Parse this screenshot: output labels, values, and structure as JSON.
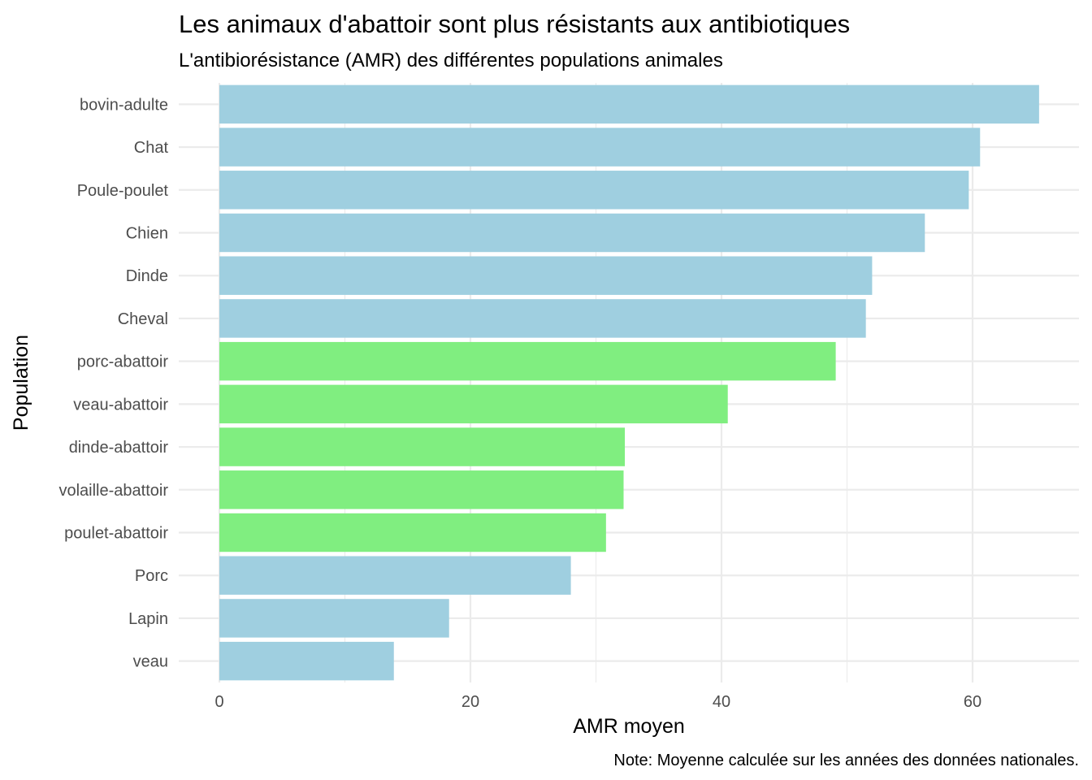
{
  "chart_data": {
    "type": "bar",
    "orientation": "horizontal",
    "title": "Les animaux d'abattoir sont plus résistants aux antibiotiques",
    "subtitle": "L'antibiorésistance (AMR) des différentes populations animales",
    "xlabel": "AMR moyen",
    "ylabel": "Population",
    "caption": "Note: Moyenne calculée sur les années des données nationales.",
    "xlim": [
      0,
      68
    ],
    "xticks": [
      0,
      20,
      40,
      60
    ],
    "grid": true,
    "legend": "none",
    "colors": {
      "abattoir": "#80ee80",
      "other": "#9fcfe0",
      "grid": "#ebebeb"
    },
    "categories": [
      "bovin-adulte",
      "Chat",
      "Poule-poulet",
      "Chien",
      "Dinde",
      "Cheval",
      "porc-abattoir",
      "veau-abattoir",
      "dinde-abattoir",
      "volaille-abattoir",
      "poulet-abattoir",
      "Porc",
      "Lapin",
      "veau"
    ],
    "values": [
      65.3,
      60.6,
      59.7,
      56.2,
      52.0,
      51.5,
      49.1,
      40.5,
      32.3,
      32.2,
      30.8,
      28.0,
      18.3,
      13.9
    ],
    "groups": [
      "other",
      "other",
      "other",
      "other",
      "other",
      "other",
      "abattoir",
      "abattoir",
      "abattoir",
      "abattoir",
      "abattoir",
      "other",
      "other",
      "other"
    ]
  }
}
